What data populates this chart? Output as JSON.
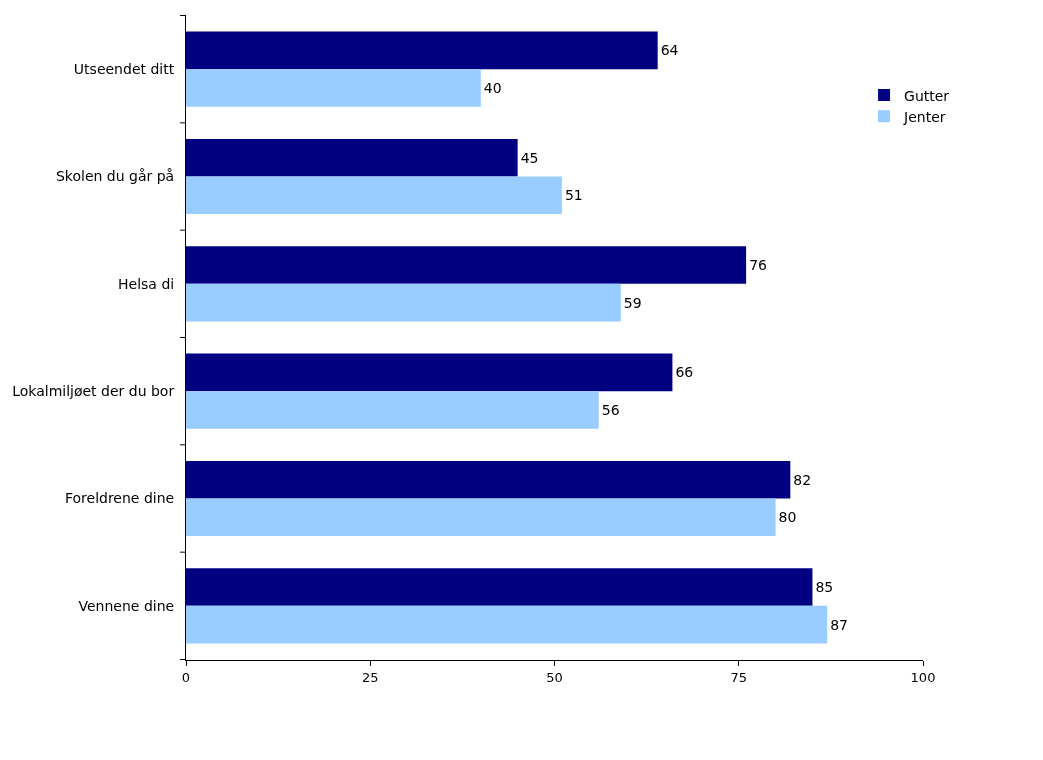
{
  "chart_data": {
    "type": "bar",
    "orientation": "horizontal",
    "categories": [
      "Utseendet ditt",
      "Skolen du går på",
      "Helsa di",
      "Lokalmiljøet der du bor",
      "Foreldrene dine",
      "Vennene dine"
    ],
    "series": [
      {
        "name": "Gutter",
        "color": "#000080",
        "values": [
          64,
          45,
          76,
          66,
          82,
          85
        ]
      },
      {
        "name": "Jenter",
        "color": "#99ccff",
        "values": [
          40,
          51,
          59,
          56,
          80,
          87
        ]
      }
    ],
    "xlim": [
      0,
      100
    ],
    "xticks": [
      0,
      25,
      50,
      75,
      100
    ],
    "legend": "top right",
    "data_labels": true
  }
}
